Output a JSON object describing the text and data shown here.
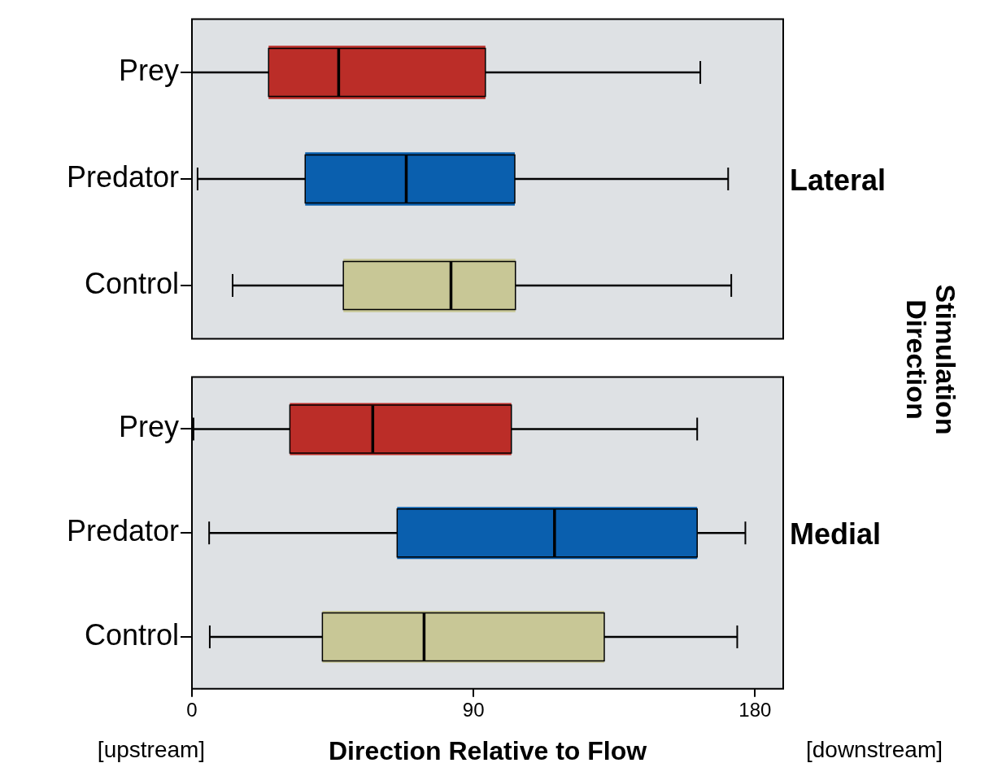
{
  "chart_data": [
    {
      "type": "box",
      "title": "Lateral",
      "y2label": "Stimulation Direction",
      "categories": [
        "Prey",
        "Predator",
        "Control"
      ],
      "colors": [
        "#bb2d28",
        "#0a5fae",
        "#c8c796"
      ],
      "boxes": [
        {
          "low": 0,
          "q1": 24.5,
          "median": 46.9,
          "q3": 93.8,
          "high": 162.5
        },
        {
          "low": 1.8,
          "q1": 36.2,
          "median": 68.5,
          "q3": 103.2,
          "high": 171.4
        },
        {
          "low": 13,
          "q1": 48.4,
          "median": 82.8,
          "q3": 103.4,
          "high": 172.4
        }
      ],
      "orientation": "horizontal",
      "xlim": [
        0,
        189
      ],
      "xticks": [
        0,
        90,
        180
      ],
      "tick_labels": "y",
      "grid": false,
      "legend": false
    },
    {
      "type": "box",
      "title": "Medial",
      "xlabel": "Direction Relative to Flow",
      "annotations": [
        "[upstream]",
        "[downstream]"
      ],
      "categories": [
        "Prey",
        "Predator",
        "Control"
      ],
      "colors": [
        "#bb2d28",
        "#0a5fae",
        "#c8c796"
      ],
      "boxes": [
        {
          "low": 0.5,
          "q1": 31.3,
          "median": 57.8,
          "q3": 102.1,
          "high": 161.5
        },
        {
          "low": 5.5,
          "q1": 65.6,
          "median": 115.9,
          "q3": 161.5,
          "high": 176.9
        },
        {
          "low": 5.7,
          "q1": 41.7,
          "median": 74.2,
          "q3": 131.8,
          "high": 174.3
        }
      ],
      "orientation": "horizontal",
      "xlim": [
        0,
        189
      ],
      "xticks": [
        0,
        90,
        180
      ],
      "grid": false,
      "legend": false
    }
  ]
}
